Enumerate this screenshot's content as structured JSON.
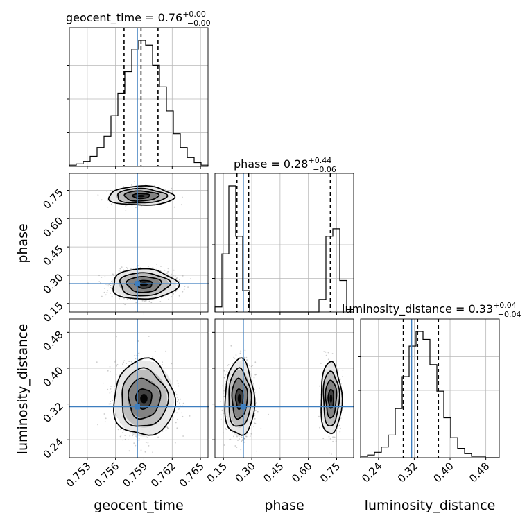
{
  "chart_data": {
    "type": "corner",
    "parameters": [
      "geocent_time",
      "phase",
      "luminosity_distance"
    ],
    "truth": {
      "geocent_time": 0.7583,
      "phase": 0.255,
      "luminosity_distance": 0.314
    },
    "truth_color": "#3d7ebf",
    "hist_color": "#000000",
    "grid": true,
    "diag_titles": [
      {
        "param": "geocent_time",
        "prefix": "geocent_time = 0.76",
        "plus": "+0.00",
        "minus": "−0.00"
      },
      {
        "param": "phase",
        "prefix": "phase = 0.28",
        "plus": "+0.44",
        "minus": "−0.06"
      },
      {
        "param": "luminosity_distance",
        "prefix": "luminosity_distance = 0.33",
        "plus": "+0.04",
        "minus": "−0.04"
      }
    ],
    "axes": {
      "geocent_time": {
        "label": "geocent_time",
        "range": [
          0.7511,
          0.7658
        ],
        "ticks": [
          "0.753",
          "0.756",
          "0.759",
          "0.762",
          "0.765"
        ],
        "tick_values": [
          0.753,
          0.756,
          0.759,
          0.762,
          0.765
        ]
      },
      "phase": {
        "label": "phase",
        "range": [
          0.105,
          0.84
        ],
        "ticks": [
          "0.15",
          "0.30",
          "0.45",
          "0.60",
          "0.75"
        ],
        "tick_values": [
          0.15,
          0.3,
          0.45,
          0.6,
          0.75
        ]
      },
      "luminosity_distance": {
        "label": "luminosity_distance",
        "range": [
          0.2,
          0.51
        ],
        "ticks": [
          "0.24",
          "0.32",
          "0.40",
          "0.48"
        ],
        "tick_values": [
          0.24,
          0.32,
          0.4,
          0.48
        ]
      }
    },
    "histograms": {
      "geocent_time": {
        "edges_start": 0.7511,
        "bin_width": 0.000735,
        "counts": [
          1,
          2,
          4,
          8,
          15,
          24,
          40,
          58,
          75,
          93,
          100,
          96,
          80,
          63,
          44,
          26,
          15,
          7,
          3,
          1
        ],
        "quantiles": [
          0.7569,
          0.7587,
          0.7605
        ]
      },
      "phase": {
        "edges_start": 0.105,
        "bin_width": 0.03675,
        "counts": [
          4,
          46,
          100,
          60,
          17,
          0,
          0,
          0,
          0,
          0,
          0,
          0,
          0,
          0,
          0,
          10,
          60,
          66,
          25,
          2
        ],
        "quantiles": [
          0.2215,
          0.2835,
          0.7165
        ]
      },
      "luminosity_distance": {
        "edges_start": 0.2,
        "bin_width": 0.0155,
        "counts": [
          1,
          2,
          4,
          8,
          17,
          37,
          61,
          84,
          95,
          89,
          70,
          50,
          30,
          15,
          7,
          3,
          1,
          1,
          0,
          0
        ],
        "quantiles": [
          0.2955,
          0.3275,
          0.374
        ]
      }
    },
    "contours": [
      {
        "x": "geocent_time",
        "y": "phase",
        "modes": [
          {
            "cx": 0.7587,
            "cy": 0.72,
            "sx": 0.0015,
            "sy": 0.022,
            "weight": 0.3
          },
          {
            "cx": 0.759,
            "cy": 0.252,
            "sx": 0.0015,
            "sy": 0.035,
            "weight": 0.7
          }
        ]
      },
      {
        "x": "geocent_time",
        "y": "luminosity_distance",
        "modes": [
          {
            "cx": 0.759,
            "cy": 0.332,
            "sx": 0.0014,
            "sy": 0.037,
            "weight": 1.0
          }
        ]
      },
      {
        "x": "phase",
        "y": "luminosity_distance",
        "modes": [
          {
            "cx": 0.235,
            "cy": 0.332,
            "sx": 0.034,
            "sy": 0.037,
            "weight": 0.7
          },
          {
            "cx": 0.72,
            "cy": 0.332,
            "sx": 0.024,
            "sy": 0.035,
            "weight": 0.3
          }
        ]
      }
    ]
  }
}
